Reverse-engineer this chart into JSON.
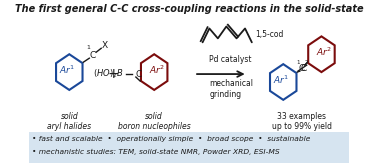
{
  "title": "The first general C-C cross-coupling reactions in the solid-state",
  "bg_color": "#ffffff",
  "bottom_bg_color": "#d6e4f0",
  "blue_color": "#1a4899",
  "dark_red_color": "#7b0c0c",
  "black": "#1a1a1a",
  "label_aryl_halides": "solid\naryl halides",
  "label_boron": "solid\nboron nucleophiles",
  "label_examples": "33 examples\nup to 99% yield",
  "label_15cod": "1,5-cod",
  "label_pd": "Pd catalyst",
  "label_grinding": "mechanical\ngrinding"
}
